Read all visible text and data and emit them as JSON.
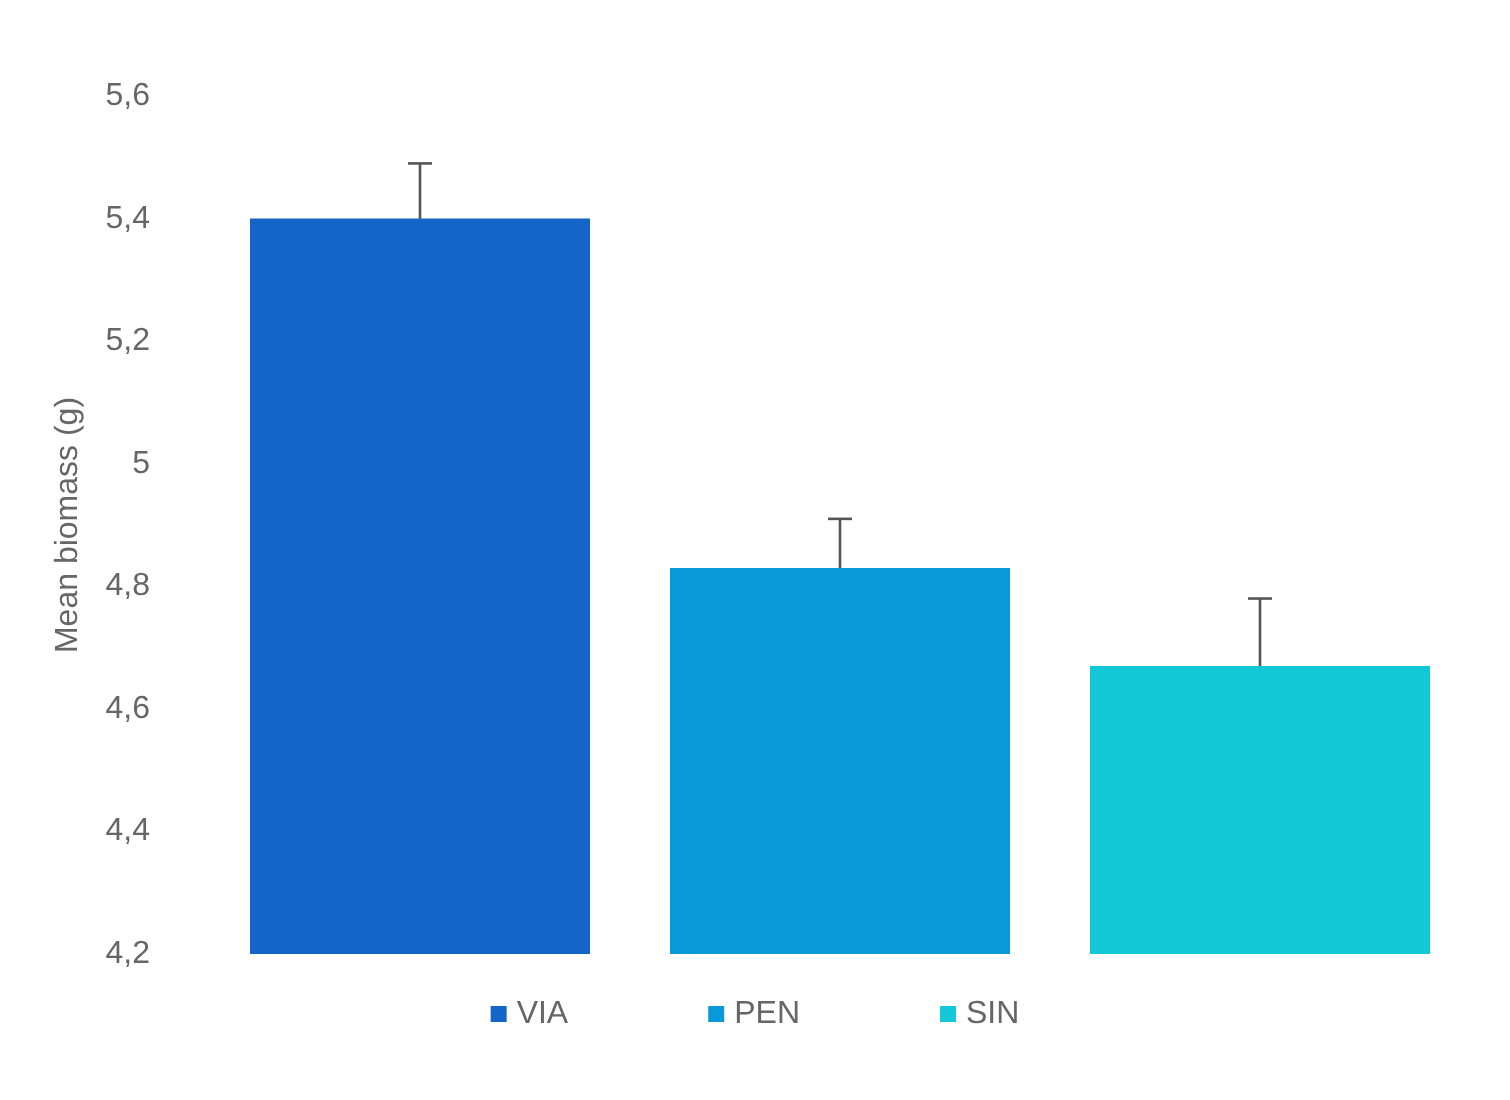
{
  "chart_data": {
    "type": "bar",
    "ylabel": "Mean biomass (g)",
    "categories": [
      null
    ],
    "series": [
      {
        "name": "VIA",
        "color": "#1565c8",
        "values": [
          5.4
        ],
        "errors": [
          0.09
        ]
      },
      {
        "name": "PEN",
        "color": "#0a99d8",
        "values": [
          4.83
        ],
        "errors": [
          0.08
        ]
      },
      {
        "name": "SIN",
        "color": "#12c8d6",
        "values": [
          4.67
        ],
        "errors": [
          0.11
        ]
      }
    ],
    "ylim": [
      4.2,
      5.6
    ],
    "yticks": [
      {
        "value": 4.2,
        "label": "4,2"
      },
      {
        "value": 4.4,
        "label": "4,4"
      },
      {
        "value": 4.6,
        "label": "4,6"
      },
      {
        "value": 4.8,
        "label": "4,8"
      },
      5,
      {
        "value": 5.2,
        "label": "5,2"
      },
      {
        "value": 5.4,
        "label": "5,4"
      },
      {
        "value": 5.6,
        "label": "5,6"
      }
    ],
    "grid": false,
    "legend": "bottom",
    "tick_labels": "y"
  }
}
